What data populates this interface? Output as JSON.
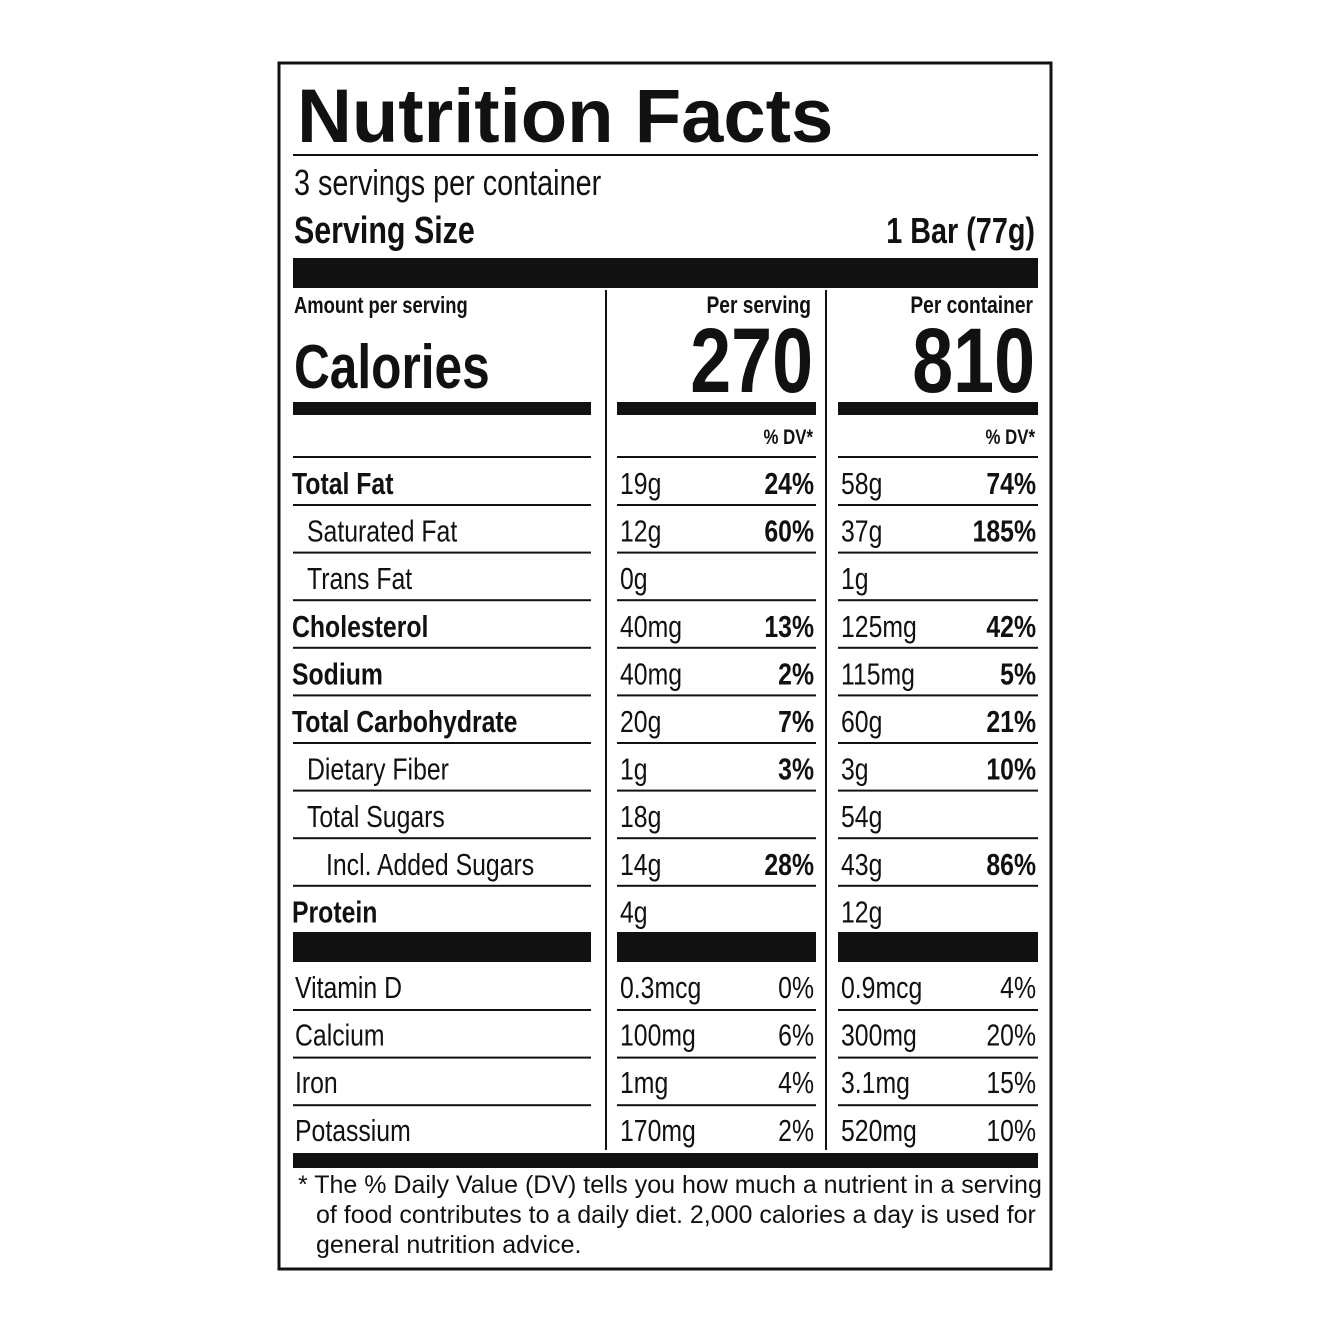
{
  "title": "Nutrition Facts",
  "servings": "3 servings per container",
  "serving_size": {
    "label": "Serving Size",
    "value": "1 Bar (77g)"
  },
  "amount_label": "Amount per serving",
  "columns": [
    {
      "heading": "Per serving",
      "dv_heading": "% DV*"
    },
    {
      "heading": "Per container",
      "dv_heading": "% DV*"
    }
  ],
  "calories": {
    "label": "Calories",
    "values": [
      270,
      810
    ]
  },
  "nutrients": [
    {
      "name": "Total Fat",
      "bold": true,
      "indent": 0,
      "cells": [
        {
          "amount": "19g",
          "dv": "24%"
        },
        {
          "amount": "58g",
          "dv": "74%"
        }
      ]
    },
    {
      "name": "Saturated Fat",
      "bold": false,
      "indent": 1,
      "cells": [
        {
          "amount": "12g",
          "dv": "60%"
        },
        {
          "amount": "37g",
          "dv": "185%"
        }
      ]
    },
    {
      "name": "Trans Fat",
      "bold": false,
      "indent": 1,
      "cells": [
        {
          "amount": "0g"
        },
        {
          "amount": "1g"
        }
      ]
    },
    {
      "name": "Cholesterol",
      "bold": true,
      "indent": 0,
      "cells": [
        {
          "amount": "40mg",
          "dv": "13%"
        },
        {
          "amount": "125mg",
          "dv": "42%"
        }
      ]
    },
    {
      "name": "Sodium",
      "bold": true,
      "indent": 0,
      "cells": [
        {
          "amount": "40mg",
          "dv": "2%"
        },
        {
          "amount": "115mg",
          "dv": "5%"
        }
      ]
    },
    {
      "name": "Total Carbohydrate",
      "bold": true,
      "indent": 0,
      "cells": [
        {
          "amount": "20g",
          "dv": "7%"
        },
        {
          "amount": "60g",
          "dv": "21%"
        }
      ]
    },
    {
      "name": "Dietary Fiber",
      "bold": false,
      "indent": 1,
      "cells": [
        {
          "amount": "1g",
          "dv": "3%"
        },
        {
          "amount": "3g",
          "dv": "10%"
        }
      ]
    },
    {
      "name": "Total Sugars",
      "bold": false,
      "indent": 1,
      "cells": [
        {
          "amount": "18g"
        },
        {
          "amount": "54g"
        }
      ]
    },
    {
      "name": "Incl. Added Sugars",
      "bold": false,
      "indent": 2,
      "cells": [
        {
          "amount": "14g",
          "dv": "28%"
        },
        {
          "amount": "43g",
          "dv": "86%"
        }
      ]
    },
    {
      "name": "Protein",
      "bold": true,
      "indent": 0,
      "cells": [
        {
          "amount": "4g"
        },
        {
          "amount": "12g"
        }
      ]
    }
  ],
  "vitamins": [
    {
      "name": "Vitamin D",
      "cells": [
        {
          "amount": "0.3mcg",
          "dv": "0%"
        },
        {
          "amount": "0.9mcg",
          "dv": "4%"
        }
      ]
    },
    {
      "name": "Calcium",
      "cells": [
        {
          "amount": "100mg",
          "dv": "6%"
        },
        {
          "amount": "300mg",
          "dv": "20%"
        }
      ]
    },
    {
      "name": "Iron",
      "cells": [
        {
          "amount": "1mg",
          "dv": "4%"
        },
        {
          "amount": "3.1mg",
          "dv": "15%"
        }
      ]
    },
    {
      "name": "Potassium",
      "cells": [
        {
          "amount": "170mg",
          "dv": "2%"
        },
        {
          "amount": "520mg",
          "dv": "10%"
        }
      ]
    }
  ],
  "footnote": "* The % Daily Value (DV) tells you how much a nutrient in a serving of food contributes to a daily diet. 2,000 calories a day is used for general nutrition advice."
}
